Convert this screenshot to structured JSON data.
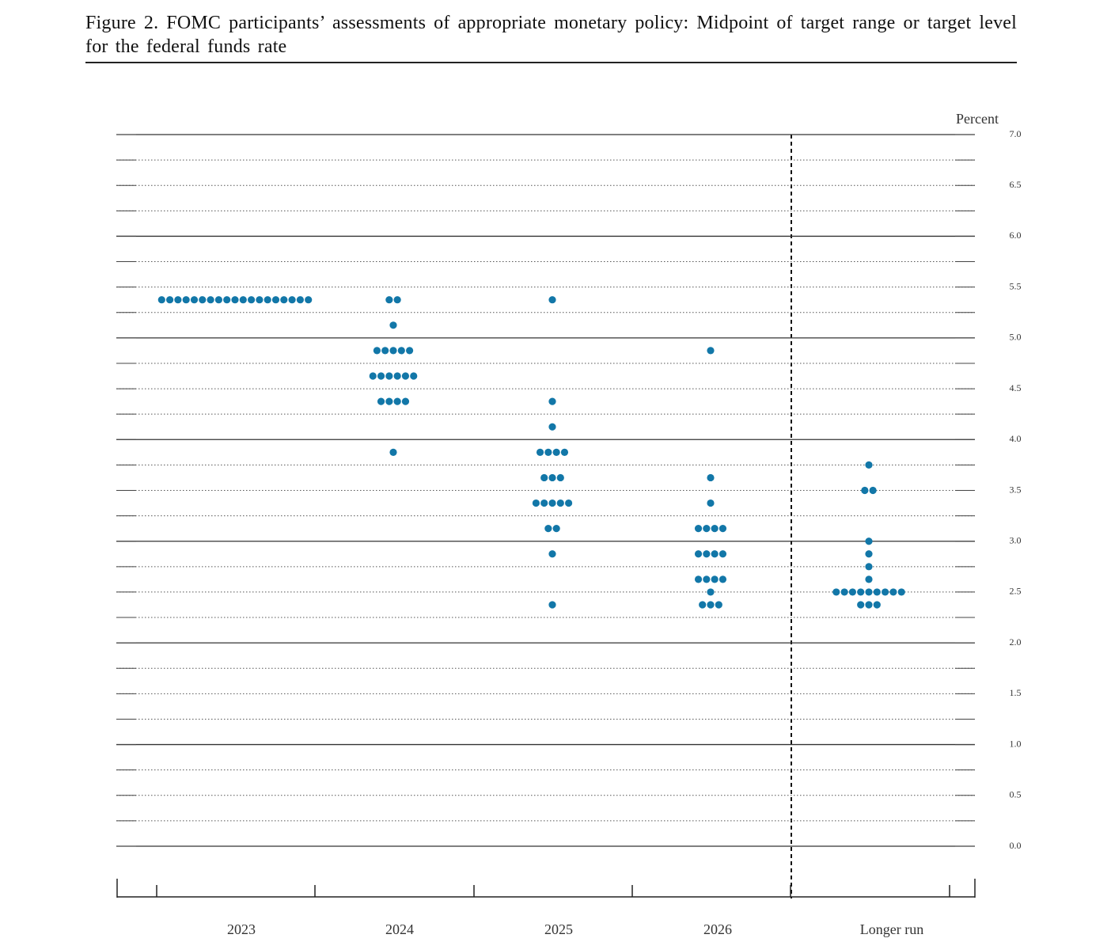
{
  "chart_data": {
    "type": "dotplot",
    "title": "Figure 2.  FOMC participants’ assessments of appropriate monetary policy: Midpoint of target range or target level for the federal funds rate",
    "ylabel": "Percent",
    "categories": [
      "2023",
      "2024",
      "2025",
      "2026",
      "Longer run"
    ],
    "color": "#1277a8",
    "ylim": [
      0,
      7
    ],
    "yticks": [
      {
        "value": 0,
        "label": "0.0"
      },
      0.5,
      {
        "value": 1,
        "label": "1.0"
      },
      1.5,
      {
        "value": 2,
        "label": "2.0"
      },
      2.5,
      {
        "value": 3,
        "label": "3.0"
      },
      3.5,
      {
        "value": 4,
        "label": "4.0"
      },
      4.5,
      {
        "value": 5,
        "label": "5.0"
      },
      5.5,
      {
        "value": 6,
        "label": "6.0"
      },
      6.5,
      {
        "value": 7,
        "label": "7.0"
      }
    ],
    "grid": true,
    "dots": [
      {
        "values": [
          5.375
        ],
        "counts": [
          19
        ]
      },
      {
        "values": [
          5.375,
          5.125,
          4.875,
          4.625,
          4.375,
          3.875
        ],
        "counts": [
          2,
          1,
          5,
          6,
          4,
          1
        ]
      },
      {
        "values": [
          5.375,
          4.375,
          4.125,
          3.875,
          3.625,
          3.375,
          3.125,
          2.875,
          2.375
        ],
        "counts": [
          1,
          1,
          1,
          4,
          3,
          5,
          2,
          1,
          1
        ]
      },
      {
        "values": [
          4.875,
          3.625,
          3.375,
          3.125,
          2.875,
          2.625,
          2.5,
          2.375
        ],
        "counts": [
          1,
          1,
          1,
          4,
          4,
          4,
          1,
          3
        ]
      },
      {
        "values": [
          3.75,
          3.5,
          3.0,
          2.875,
          2.75,
          2.625,
          2.5,
          2.375
        ],
        "counts": [
          1,
          2,
          1,
          1,
          1,
          1,
          9,
          3
        ]
      }
    ]
  }
}
